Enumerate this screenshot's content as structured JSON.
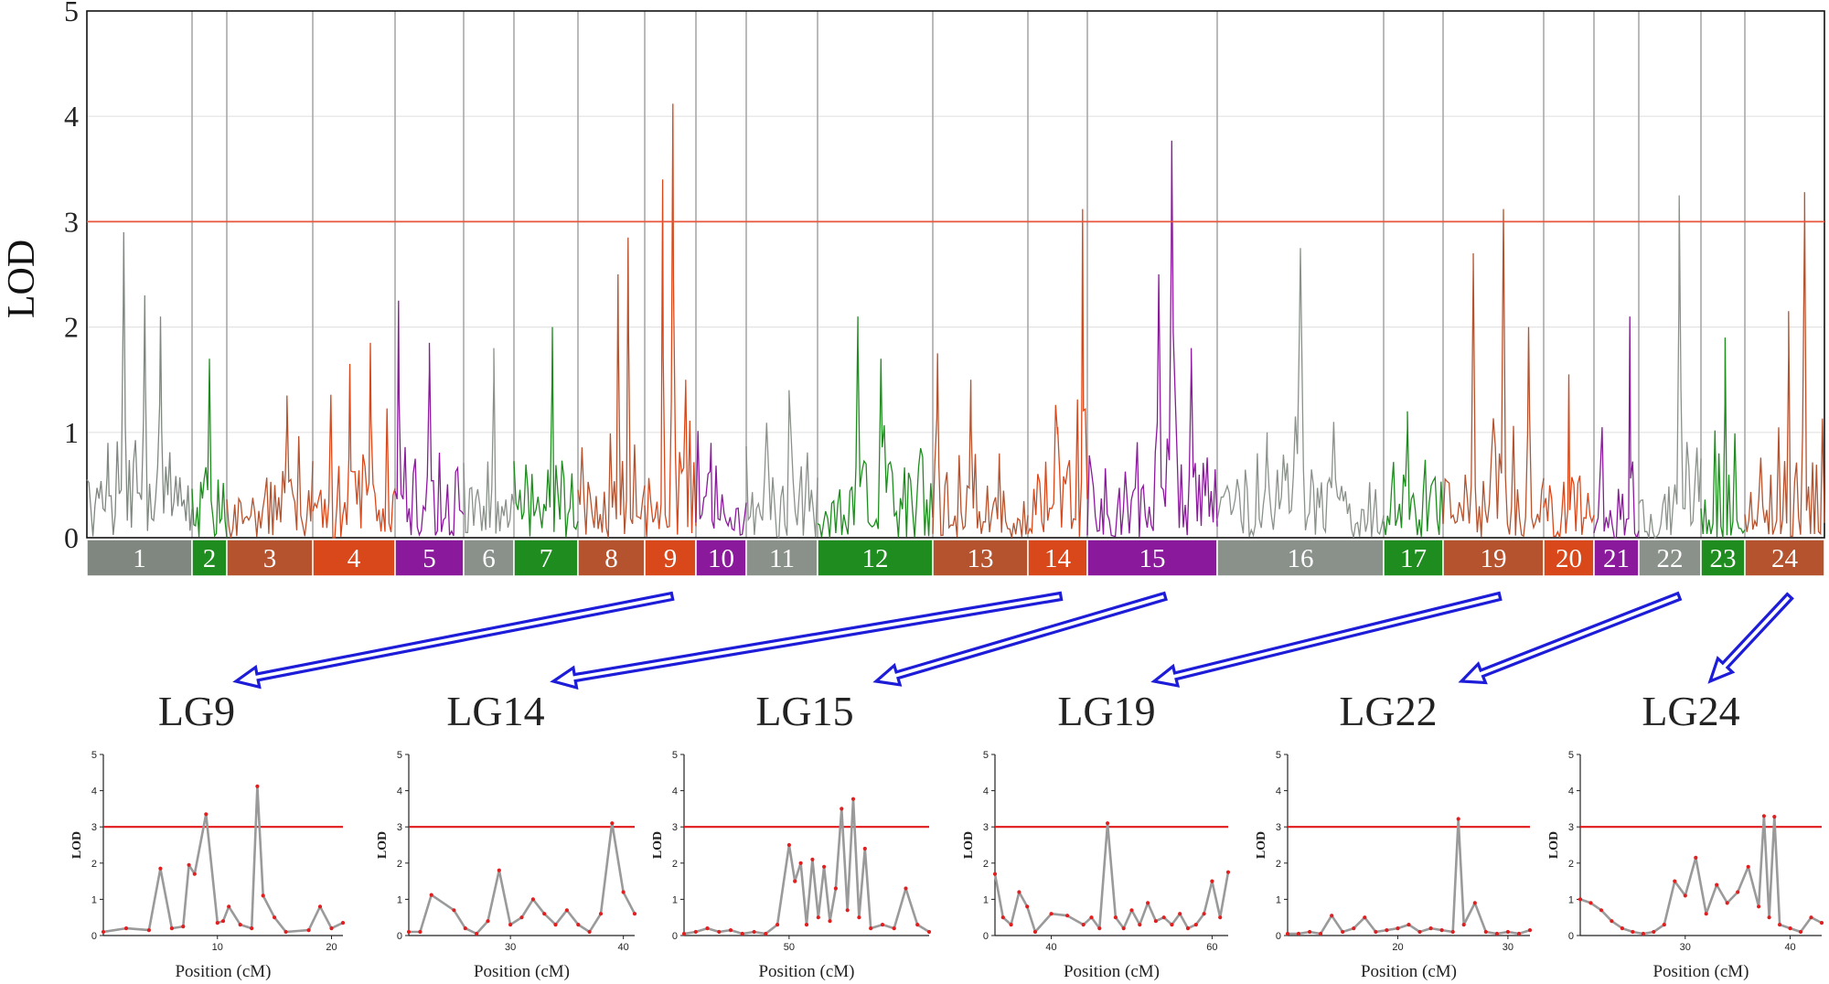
{
  "chart_data": [
    {
      "type": "line",
      "ylabel": "LOD",
      "xlabel": "",
      "title": "",
      "ylim": [
        0,
        5
      ],
      "yticks": [
        "0",
        "1",
        "2",
        "3",
        "4",
        "5"
      ],
      "threshold": 3,
      "grid": true,
      "linkage_groups": [
        {
          "label": "1",
          "color": "#7f8780",
          "peaks": [
            [
              0.2,
              0.9
            ],
            [
              0.35,
              2.9
            ],
            [
              0.55,
              2.3
            ],
            [
              0.7,
              2.1
            ]
          ]
        },
        {
          "label": "2",
          "color": "#1f8c1f",
          "peaks": [
            [
              0.5,
              1.7
            ]
          ]
        },
        {
          "label": "3",
          "color": "#b5532f",
          "peaks": [
            [
              0.7,
              1.35
            ]
          ]
        },
        {
          "label": "4",
          "color": "#d9481a",
          "peaks": [
            [
              0.45,
              1.65
            ],
            [
              0.7,
              1.85
            ]
          ]
        },
        {
          "label": "5",
          "color": "#8a1a9b",
          "peaks": [
            [
              0.05,
              2.25
            ],
            [
              0.5,
              1.85
            ]
          ]
        },
        {
          "label": "6",
          "color": "#8a918a",
          "peaks": [
            [
              0.6,
              1.8
            ]
          ]
        },
        {
          "label": "7",
          "color": "#1f8c1f",
          "peaks": [
            [
              0.6,
              2.0
            ]
          ]
        },
        {
          "label": "8",
          "color": "#b5532f",
          "peaks": [
            [
              0.6,
              2.5
            ],
            [
              0.75,
              2.85
            ]
          ]
        },
        {
          "label": "9",
          "color": "#d9481a",
          "peaks": [
            [
              0.35,
              3.4
            ],
            [
              0.55,
              4.12
            ],
            [
              0.8,
              1.5
            ]
          ]
        },
        {
          "label": "10",
          "color": "#8a1a9b",
          "peaks": [
            [
              0.3,
              0.9
            ]
          ]
        },
        {
          "label": "11",
          "color": "#8a918a",
          "peaks": [
            [
              0.6,
              1.4
            ]
          ]
        },
        {
          "label": "12",
          "color": "#1f8c1f",
          "peaks": [
            [
              0.35,
              2.1
            ],
            [
              0.55,
              1.7
            ]
          ]
        },
        {
          "label": "13",
          "color": "#b5532f",
          "peaks": [
            [
              0.05,
              1.75
            ],
            [
              0.4,
              1.5
            ],
            [
              0.7,
              0.8
            ]
          ]
        },
        {
          "label": "14",
          "color": "#d9481a",
          "peaks": [
            [
              0.5,
              1.05
            ],
            [
              0.92,
              3.12
            ]
          ]
        },
        {
          "label": "15",
          "color": "#8a1a9b",
          "peaks": [
            [
              0.55,
              2.5
            ],
            [
              0.65,
              3.77
            ],
            [
              0.8,
              1.8
            ]
          ]
        },
        {
          "label": "16",
          "color": "#8a918a",
          "peaks": [
            [
              0.3,
              1.0
            ],
            [
              0.5,
              2.75
            ],
            [
              0.7,
              1.1
            ]
          ]
        },
        {
          "label": "17",
          "color": "#1f8c1f",
          "peaks": [
            [
              0.4,
              1.2
            ]
          ]
        },
        {
          "label": "19",
          "color": "#b5532f",
          "peaks": [
            [
              0.3,
              2.7
            ],
            [
              0.6,
              3.12
            ],
            [
              0.85,
              2.0
            ]
          ]
        },
        {
          "label": "20",
          "color": "#d9481a",
          "peaks": [
            [
              0.5,
              1.55
            ]
          ]
        },
        {
          "label": "21",
          "color": "#8a1a9b",
          "peaks": [
            [
              0.8,
              2.1
            ]
          ]
        },
        {
          "label": "22",
          "color": "#8a918a",
          "peaks": [
            [
              0.65,
              3.25
            ]
          ]
        },
        {
          "label": "23",
          "color": "#1f8c1f",
          "peaks": [
            [
              0.55,
              1.9
            ]
          ]
        },
        {
          "label": "24",
          "color": "#b5532f",
          "peaks": [
            [
              0.55,
              2.15
            ],
            [
              0.75,
              3.28
            ]
          ]
        }
      ]
    },
    {
      "type": "line",
      "title": "LG9",
      "ylabel": "LOD",
      "xlabel": "Position (cM)",
      "ylim": [
        0,
        5
      ],
      "xlim": [
        0,
        21
      ],
      "xticks": [
        "10",
        "20"
      ],
      "threshold": 3,
      "x": [
        0,
        2,
        4,
        5,
        6,
        7,
        7.5,
        8,
        9,
        10,
        10.5,
        11,
        12,
        13,
        13.5,
        14,
        15,
        16,
        18,
        19,
        20,
        21
      ],
      "y": [
        0.1,
        0.2,
        0.15,
        1.85,
        0.2,
        0.25,
        1.95,
        1.7,
        3.35,
        0.35,
        0.4,
        0.8,
        0.3,
        0.2,
        4.12,
        1.1,
        0.5,
        0.1,
        0.15,
        0.8,
        0.2,
        0.35
      ]
    },
    {
      "type": "line",
      "title": "LG14",
      "ylabel": "LOD",
      "xlabel": "Position (cM)",
      "ylim": [
        0,
        5
      ],
      "xlim": [
        21,
        41
      ],
      "xticks": [
        "30",
        "40"
      ],
      "threshold": 3,
      "x": [
        21,
        22,
        23,
        25,
        26,
        27,
        28,
        29,
        30,
        31,
        32,
        33,
        34,
        35,
        36,
        37,
        38,
        39,
        40,
        41
      ],
      "y": [
        0.1,
        0.1,
        1.12,
        0.7,
        0.2,
        0.05,
        0.4,
        1.8,
        0.3,
        0.5,
        1.0,
        0.6,
        0.3,
        0.7,
        0.3,
        0.1,
        0.6,
        3.1,
        1.2,
        0.6
      ]
    },
    {
      "type": "line",
      "title": "LG15",
      "ylabel": "LOD",
      "xlabel": "Position (cM)",
      "ylim": [
        0,
        5
      ],
      "xlim": [
        41,
        62
      ],
      "xticks": [
        "50"
      ],
      "threshold": 3,
      "x": [
        41,
        42,
        43,
        44,
        45,
        46,
        47,
        48,
        49,
        50,
        50.5,
        51,
        51.5,
        52,
        52.5,
        53,
        53.5,
        54,
        54.5,
        55,
        55.5,
        56,
        56.5,
        57,
        58,
        59,
        60,
        61,
        62
      ],
      "y": [
        0.05,
        0.1,
        0.2,
        0.1,
        0.15,
        0.05,
        0.1,
        0.05,
        0.3,
        2.5,
        1.5,
        2.0,
        0.3,
        2.1,
        0.5,
        1.9,
        0.4,
        1.3,
        3.5,
        0.7,
        3.77,
        0.5,
        2.4,
        0.2,
        0.3,
        0.2,
        1.3,
        0.3,
        0.1
      ]
    },
    {
      "type": "line",
      "title": "LG19",
      "ylabel": "LOD",
      "xlabel": "Position (cM)",
      "ylim": [
        0,
        5
      ],
      "xlim": [
        33,
        62
      ],
      "xticks": [
        "40",
        "60"
      ],
      "threshold": 3,
      "x": [
        33,
        34,
        35,
        36,
        37,
        38,
        40,
        42,
        44,
        45,
        46,
        47,
        48,
        49,
        50,
        51,
        52,
        53,
        54,
        55,
        56,
        57,
        58,
        59,
        60,
        61,
        62
      ],
      "y": [
        1.7,
        0.5,
        0.3,
        1.2,
        0.8,
        0.1,
        0.6,
        0.55,
        0.3,
        0.5,
        0.2,
        3.1,
        0.5,
        0.2,
        0.7,
        0.3,
        0.9,
        0.4,
        0.5,
        0.3,
        0.6,
        0.2,
        0.3,
        0.6,
        1.5,
        0.5,
        1.75
      ]
    },
    {
      "type": "line",
      "title": "LG22",
      "ylabel": "LOD",
      "xlabel": "Position (cM)",
      "ylim": [
        0,
        5
      ],
      "xlim": [
        10,
        32
      ],
      "xticks": [
        "20",
        "30"
      ],
      "threshold": 3,
      "x": [
        10,
        11,
        12,
        13,
        14,
        15,
        16,
        17,
        18,
        19,
        20,
        21,
        22,
        23,
        24,
        25,
        25.5,
        26,
        27,
        28,
        29,
        30,
        31,
        32
      ],
      "y": [
        0.05,
        0.05,
        0.1,
        0.05,
        0.55,
        0.1,
        0.2,
        0.5,
        0.1,
        0.15,
        0.2,
        0.3,
        0.1,
        0.2,
        0.15,
        0.1,
        3.22,
        0.3,
        0.9,
        0.1,
        0.05,
        0.1,
        0.05,
        0.15
      ]
    },
    {
      "type": "line",
      "title": "LG24",
      "ylabel": "LOD",
      "xlabel": "Position (cM)",
      "ylim": [
        0,
        5
      ],
      "xlim": [
        20,
        43
      ],
      "xticks": [
        "30",
        "40"
      ],
      "threshold": 3,
      "x": [
        20,
        21,
        22,
        23,
        24,
        25,
        26,
        27,
        28,
        29,
        30,
        31,
        32,
        33,
        34,
        35,
        36,
        37,
        37.5,
        38,
        38.5,
        39,
        40,
        41,
        42,
        43
      ],
      "y": [
        1.0,
        0.9,
        0.7,
        0.4,
        0.2,
        0.1,
        0.05,
        0.1,
        0.3,
        1.5,
        1.1,
        2.15,
        0.6,
        1.4,
        0.9,
        1.2,
        1.9,
        0.8,
        3.3,
        0.5,
        3.28,
        0.3,
        0.2,
        0.1,
        0.5,
        0.35
      ]
    }
  ]
}
